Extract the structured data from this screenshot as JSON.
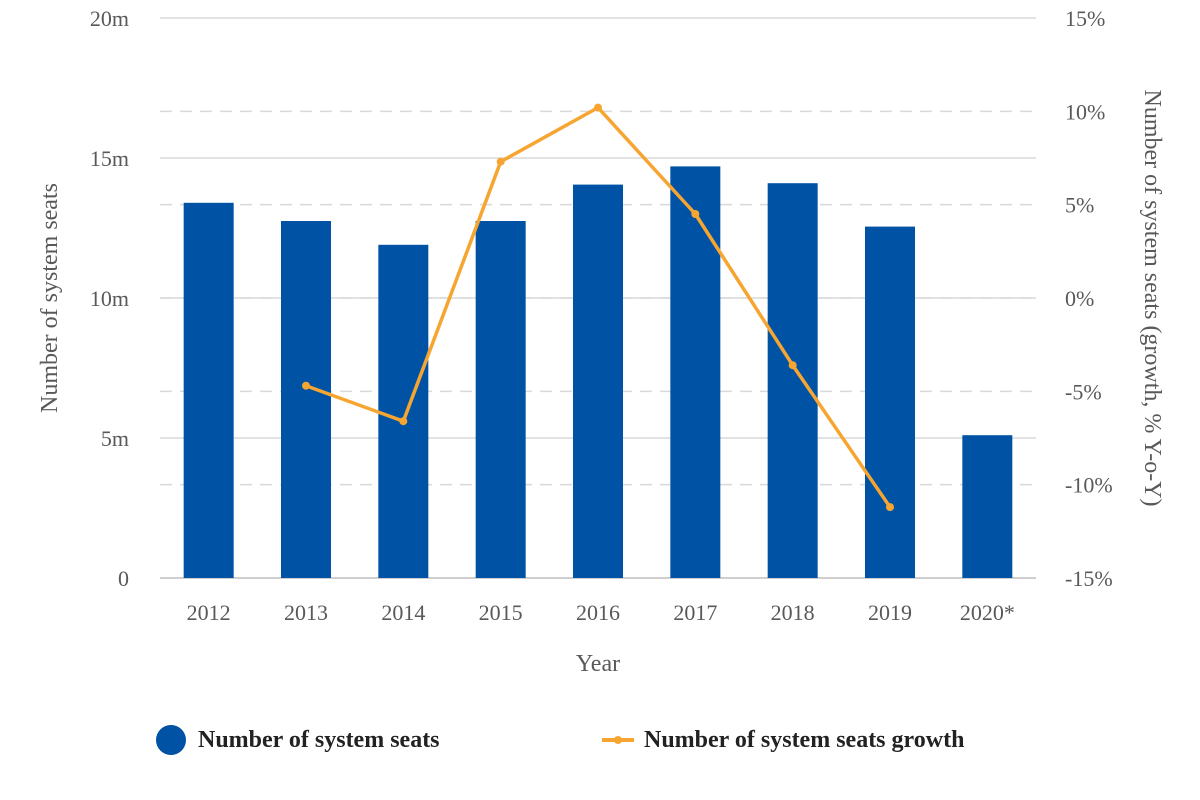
{
  "chart_data": {
    "type": "bar",
    "categories": [
      "2012",
      "2013",
      "2014",
      "2015",
      "2016",
      "2017",
      "2018",
      "2019",
      "2020*"
    ],
    "series": [
      {
        "name": "Number of system seats",
        "type": "bar",
        "axis": "left",
        "values": [
          13.4,
          12.75,
          11.9,
          12.75,
          14.05,
          14.7,
          14.1,
          12.55,
          5.1
        ],
        "color": "#0052a5"
      },
      {
        "name": "Number of system seats growth",
        "type": "line",
        "axis": "right",
        "values": [
          null,
          -4.7,
          -6.6,
          7.3,
          10.2,
          4.5,
          -3.6,
          -11.2,
          null
        ],
        "color": "#f7a531"
      }
    ],
    "xlabel": "Year",
    "ylabel": "Number of system seats",
    "y2label": "Number of system seats (growth, % Y-o-Y)",
    "ylim": [
      0,
      20
    ],
    "y2lim": [
      -15,
      15
    ],
    "y_ticks": [
      0,
      5,
      10,
      15,
      20
    ],
    "y_tick_labels": [
      "0",
      "5m",
      "10m",
      "15m",
      "20m"
    ],
    "y2_ticks": [
      -15,
      -10,
      -5,
      0,
      5,
      10,
      15
    ],
    "y2_tick_labels": [
      "-15%",
      "-10%",
      "-5%",
      "0%",
      "5%",
      "10%",
      "15%"
    ],
    "grid": true,
    "legend_position": "bottom"
  }
}
